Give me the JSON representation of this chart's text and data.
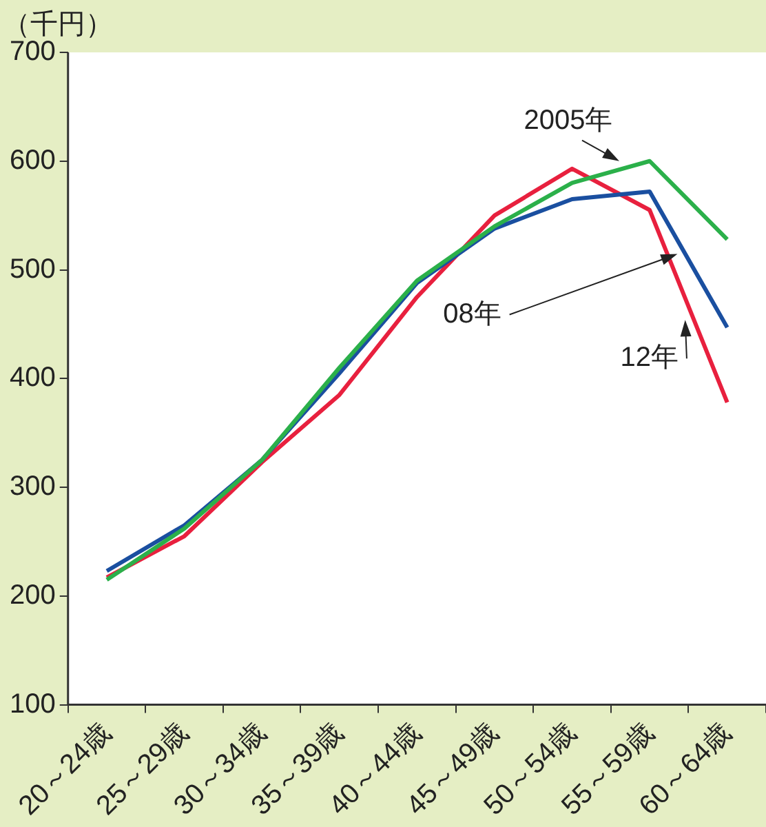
{
  "chart_data": {
    "type": "line",
    "ylabel": "（千円）",
    "categories": [
      "20～24歳",
      "25～29歳",
      "30～34歳",
      "35～39歳",
      "40～44歳",
      "45～49歳",
      "50～54歳",
      "55～59歳",
      "60～64歳"
    ],
    "series": [
      {
        "name": "2005年",
        "color": "#2bb04a",
        "values": [
          215,
          262,
          325,
          410,
          490,
          540,
          580,
          600,
          528
        ]
      },
      {
        "name": "08年",
        "color": "#1a4fa0",
        "values": [
          223,
          265,
          325,
          405,
          488,
          538,
          565,
          572,
          447
        ]
      },
      {
        "name": "12年",
        "color": "#e8203e",
        "values": [
          217,
          255,
          323,
          385,
          475,
          550,
          593,
          555,
          378
        ]
      }
    ],
    "ylim": [
      100,
      700
    ],
    "yticks": [
      100,
      200,
      300,
      400,
      500,
      600,
      700
    ],
    "grid": false,
    "legend": false,
    "marker": "none",
    "line_style": "solid"
  }
}
